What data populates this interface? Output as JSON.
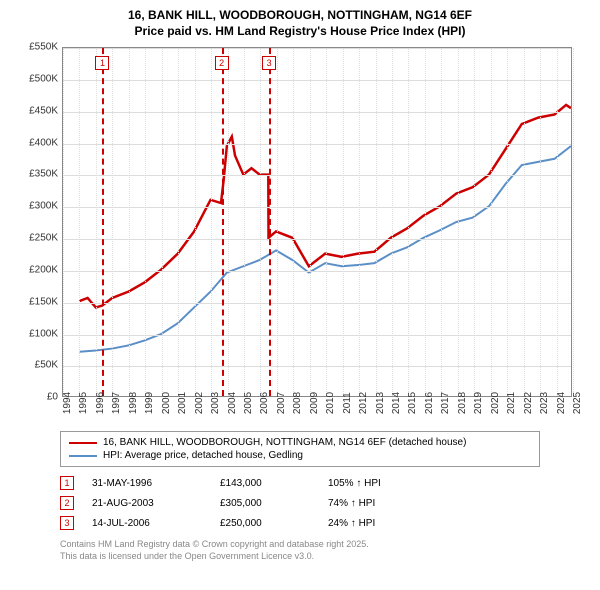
{
  "title_line1": "16, BANK HILL, WOODBOROUGH, NOTTINGHAM, NG14 6EF",
  "title_line2": "Price paid vs. HM Land Registry's House Price Index (HPI)",
  "chart": {
    "type": "line",
    "background_color": "#ffffff",
    "grid_color": "#dddddd",
    "border_color": "#888888",
    "x_years": [
      1994,
      1995,
      1996,
      1997,
      1998,
      1999,
      2000,
      2001,
      2002,
      2003,
      2004,
      2005,
      2006,
      2007,
      2008,
      2009,
      2010,
      2011,
      2012,
      2013,
      2014,
      2015,
      2016,
      2017,
      2018,
      2019,
      2020,
      2021,
      2022,
      2023,
      2024,
      2025
    ],
    "ylim": [
      0,
      550000
    ],
    "ytick_step": 50000,
    "ylabels": [
      "£0",
      "£50K",
      "£100K",
      "£150K",
      "£200K",
      "£250K",
      "£300K",
      "£350K",
      "£400K",
      "£450K",
      "£500K",
      "£550K"
    ],
    "series": [
      {
        "name": "16, BANK HILL, WOODBOROUGH, NOTTINGHAM, NG14 6EF (detached house)",
        "color": "#cc0000",
        "width": 2.5,
        "points": [
          [
            1995,
            150000
          ],
          [
            1995.5,
            155000
          ],
          [
            1996,
            140000
          ],
          [
            1996.4,
            143000
          ],
          [
            1997,
            155000
          ],
          [
            1998,
            165000
          ],
          [
            1999,
            180000
          ],
          [
            2000,
            200000
          ],
          [
            2001,
            225000
          ],
          [
            2002,
            260000
          ],
          [
            2003,
            310000
          ],
          [
            2003.64,
            305000
          ],
          [
            2003.8,
            340000
          ],
          [
            2004,
            395000
          ],
          [
            2004.3,
            410000
          ],
          [
            2004.5,
            380000
          ],
          [
            2005,
            350000
          ],
          [
            2005.5,
            360000
          ],
          [
            2006,
            350000
          ],
          [
            2006.53,
            350000
          ],
          [
            2006.54,
            250000
          ],
          [
            2007,
            260000
          ],
          [
            2008,
            250000
          ],
          [
            2009,
            205000
          ],
          [
            2010,
            225000
          ],
          [
            2011,
            220000
          ],
          [
            2012,
            225000
          ],
          [
            2013,
            228000
          ],
          [
            2014,
            250000
          ],
          [
            2015,
            265000
          ],
          [
            2016,
            285000
          ],
          [
            2017,
            300000
          ],
          [
            2018,
            320000
          ],
          [
            2019,
            330000
          ],
          [
            2020,
            350000
          ],
          [
            2021,
            390000
          ],
          [
            2022,
            430000
          ],
          [
            2023,
            440000
          ],
          [
            2024,
            445000
          ],
          [
            2024.7,
            460000
          ],
          [
            2025,
            455000
          ]
        ]
      },
      {
        "name": "HPI: Average price, detached house, Gedling",
        "color": "#5b8fc7",
        "width": 2,
        "points": [
          [
            1995,
            70000
          ],
          [
            1996,
            72000
          ],
          [
            1997,
            75000
          ],
          [
            1998,
            80000
          ],
          [
            1999,
            88000
          ],
          [
            2000,
            98000
          ],
          [
            2001,
            115000
          ],
          [
            2002,
            140000
          ],
          [
            2003,
            165000
          ],
          [
            2004,
            195000
          ],
          [
            2005,
            205000
          ],
          [
            2006,
            215000
          ],
          [
            2007,
            230000
          ],
          [
            2008,
            215000
          ],
          [
            2009,
            195000
          ],
          [
            2010,
            210000
          ],
          [
            2011,
            205000
          ],
          [
            2012,
            207000
          ],
          [
            2013,
            210000
          ],
          [
            2014,
            225000
          ],
          [
            2015,
            235000
          ],
          [
            2016,
            250000
          ],
          [
            2017,
            262000
          ],
          [
            2018,
            275000
          ],
          [
            2019,
            282000
          ],
          [
            2020,
            300000
          ],
          [
            2021,
            335000
          ],
          [
            2022,
            365000
          ],
          [
            2023,
            370000
          ],
          [
            2024,
            375000
          ],
          [
            2025,
            395000
          ]
        ]
      }
    ],
    "markers": [
      {
        "n": "1",
        "year": 1996.4,
        "color": "#cc0000"
      },
      {
        "n": "2",
        "year": 2003.64,
        "color": "#cc0000"
      },
      {
        "n": "3",
        "year": 2006.53,
        "color": "#cc0000"
      }
    ]
  },
  "legend": [
    {
      "label": "16, BANK HILL, WOODBOROUGH, NOTTINGHAM, NG14 6EF (detached house)",
      "color": "#cc0000",
      "width": 2.5
    },
    {
      "label": "HPI: Average price, detached house, Gedling",
      "color": "#5b8fc7",
      "width": 2
    }
  ],
  "transactions": [
    {
      "n": "1",
      "date": "31-MAY-1996",
      "price": "£143,000",
      "pct": "105% ↑ HPI",
      "color": "#cc0000"
    },
    {
      "n": "2",
      "date": "21-AUG-2003",
      "price": "£305,000",
      "pct": "74% ↑ HPI",
      "color": "#cc0000"
    },
    {
      "n": "3",
      "date": "14-JUL-2006",
      "price": "£250,000",
      "pct": "24% ↑ HPI",
      "color": "#cc0000"
    }
  ],
  "footer_line1": "Contains HM Land Registry data © Crown copyright and database right 2025.",
  "footer_line2": "This data is licensed under the Open Government Licence v3.0."
}
